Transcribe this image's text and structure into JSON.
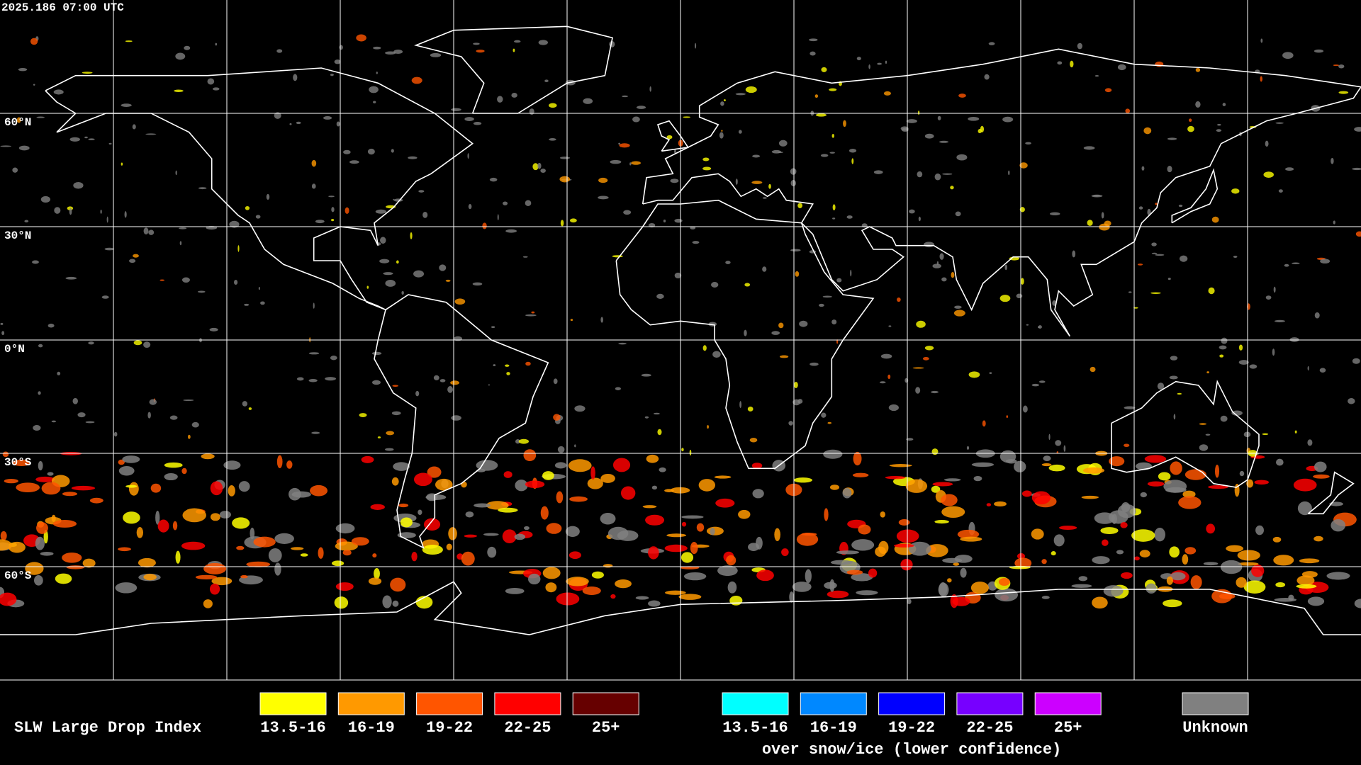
{
  "header": {
    "timestamp": "2025.186 07:00 UTC"
  },
  "map": {
    "lat_labels": [
      "60°N",
      "30°N",
      "0°N",
      "30°S",
      "60°S"
    ]
  },
  "legend": {
    "title": "SLW Large Drop Index",
    "groups": [
      {
        "items": [
          {
            "label": "13.5-16",
            "color": "#ffff00"
          },
          {
            "label": "16-19",
            "color": "#ff9900"
          },
          {
            "label": "19-22",
            "color": "#ff5500"
          },
          {
            "label": "22-25",
            "color": "#ff0000"
          },
          {
            "label": "25+",
            "color": "#660000"
          }
        ]
      },
      {
        "items": [
          {
            "label": "13.5-16",
            "color": "#00ffff"
          },
          {
            "label": "16-19",
            "color": "#0088ff"
          },
          {
            "label": "19-22",
            "color": "#0000ff"
          },
          {
            "label": "22-25",
            "color": "#7700ff"
          },
          {
            "label": "25+",
            "color": "#cc00ff"
          }
        ],
        "note": "over snow/ice (lower confidence)"
      }
    ],
    "unknown": {
      "label": "Unknown",
      "color": "#808080"
    }
  }
}
